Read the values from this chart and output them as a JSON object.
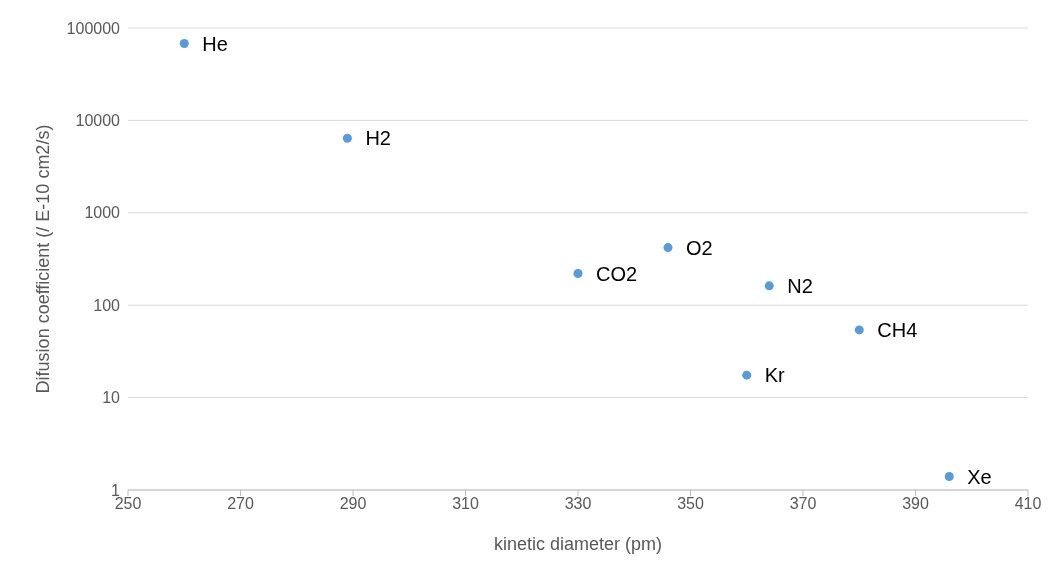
{
  "chart_data": {
    "type": "scatter",
    "xlabel": "kinetic diameter (pm)",
    "ylabel": "Difusion coefficient (/ E-10 cm2/s)",
    "x": [
      260,
      289,
      330,
      346,
      364,
      360,
      380,
      396
    ],
    "series": [
      {
        "color": "#5b9bd5",
        "values": [
          68000,
          6400,
          220,
          420,
          162,
          17.5,
          54,
          1.4
        ]
      }
    ],
    "xlim": [
      250,
      410
    ],
    "xticks": [
      250,
      270,
      290,
      310,
      330,
      350,
      370,
      390,
      410
    ],
    "ylim": [
      1,
      100000
    ],
    "yticks": [
      1,
      10,
      100,
      1000,
      10000,
      100000
    ],
    "log": "y",
    "grid": "y",
    "marker": "circle",
    "legend": false,
    "annotations": [
      {
        "text": "He",
        "x": 260,
        "y": 68000
      },
      {
        "text": "H2",
        "x": 289,
        "y": 6400
      },
      {
        "text": "CO2",
        "x": 330,
        "y": 220
      },
      {
        "text": "O2",
        "x": 346,
        "y": 420
      },
      {
        "text": "N2",
        "x": 364,
        "y": 162
      },
      {
        "text": "Kr",
        "x": 360,
        "y": 17.5
      },
      {
        "text": "CH4",
        "x": 380,
        "y": 54
      },
      {
        "text": "Xe",
        "x": 396,
        "y": 1.4
      }
    ]
  }
}
